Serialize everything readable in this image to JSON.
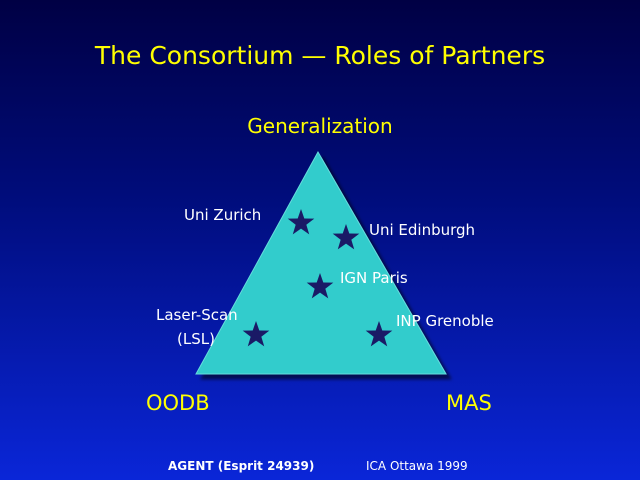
{
  "title": "The Consortium — Roles of Partners",
  "vertices": {
    "top": "Generalization",
    "bottom_left": "OODB",
    "bottom_right": "MAS"
  },
  "partners": [
    {
      "name": "Uni Zurich"
    },
    {
      "name": "Uni Edinburgh"
    },
    {
      "name": "IGN Paris"
    },
    {
      "name": "Laser-Scan",
      "name_line2": "(LSL)"
    },
    {
      "name": "INP Grenoble"
    }
  ],
  "footer": {
    "left": "AGENT (Esprit 24939)",
    "right": "ICA Ottawa 1999"
  },
  "colors": {
    "title": "#ffff00",
    "triangle": "#33cccc",
    "star": "#1a1a66",
    "label": "#ffffff"
  }
}
